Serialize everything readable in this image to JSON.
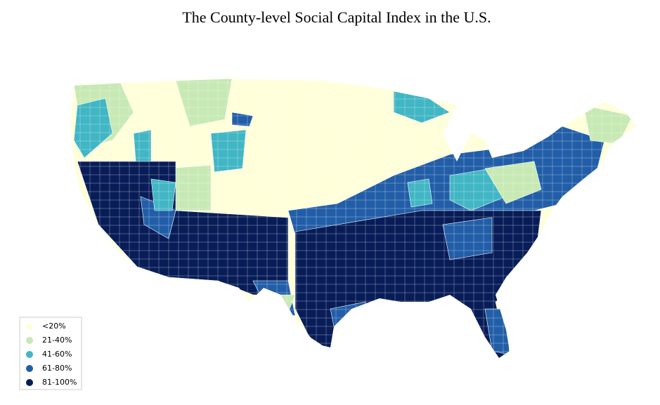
{
  "title": "The County-level Social Capital Index in the U.S.",
  "legend": {
    "items": [
      {
        "label": "<20%",
        "color": "#ffffd9"
      },
      {
        "label": "21-40%",
        "color": "#c7e9b4"
      },
      {
        "label": "41-60%",
        "color": "#41b6c4"
      },
      {
        "label": "61-80%",
        "color": "#225ea8"
      },
      {
        "label": "81-100%",
        "color": "#081d58"
      }
    ]
  }
}
